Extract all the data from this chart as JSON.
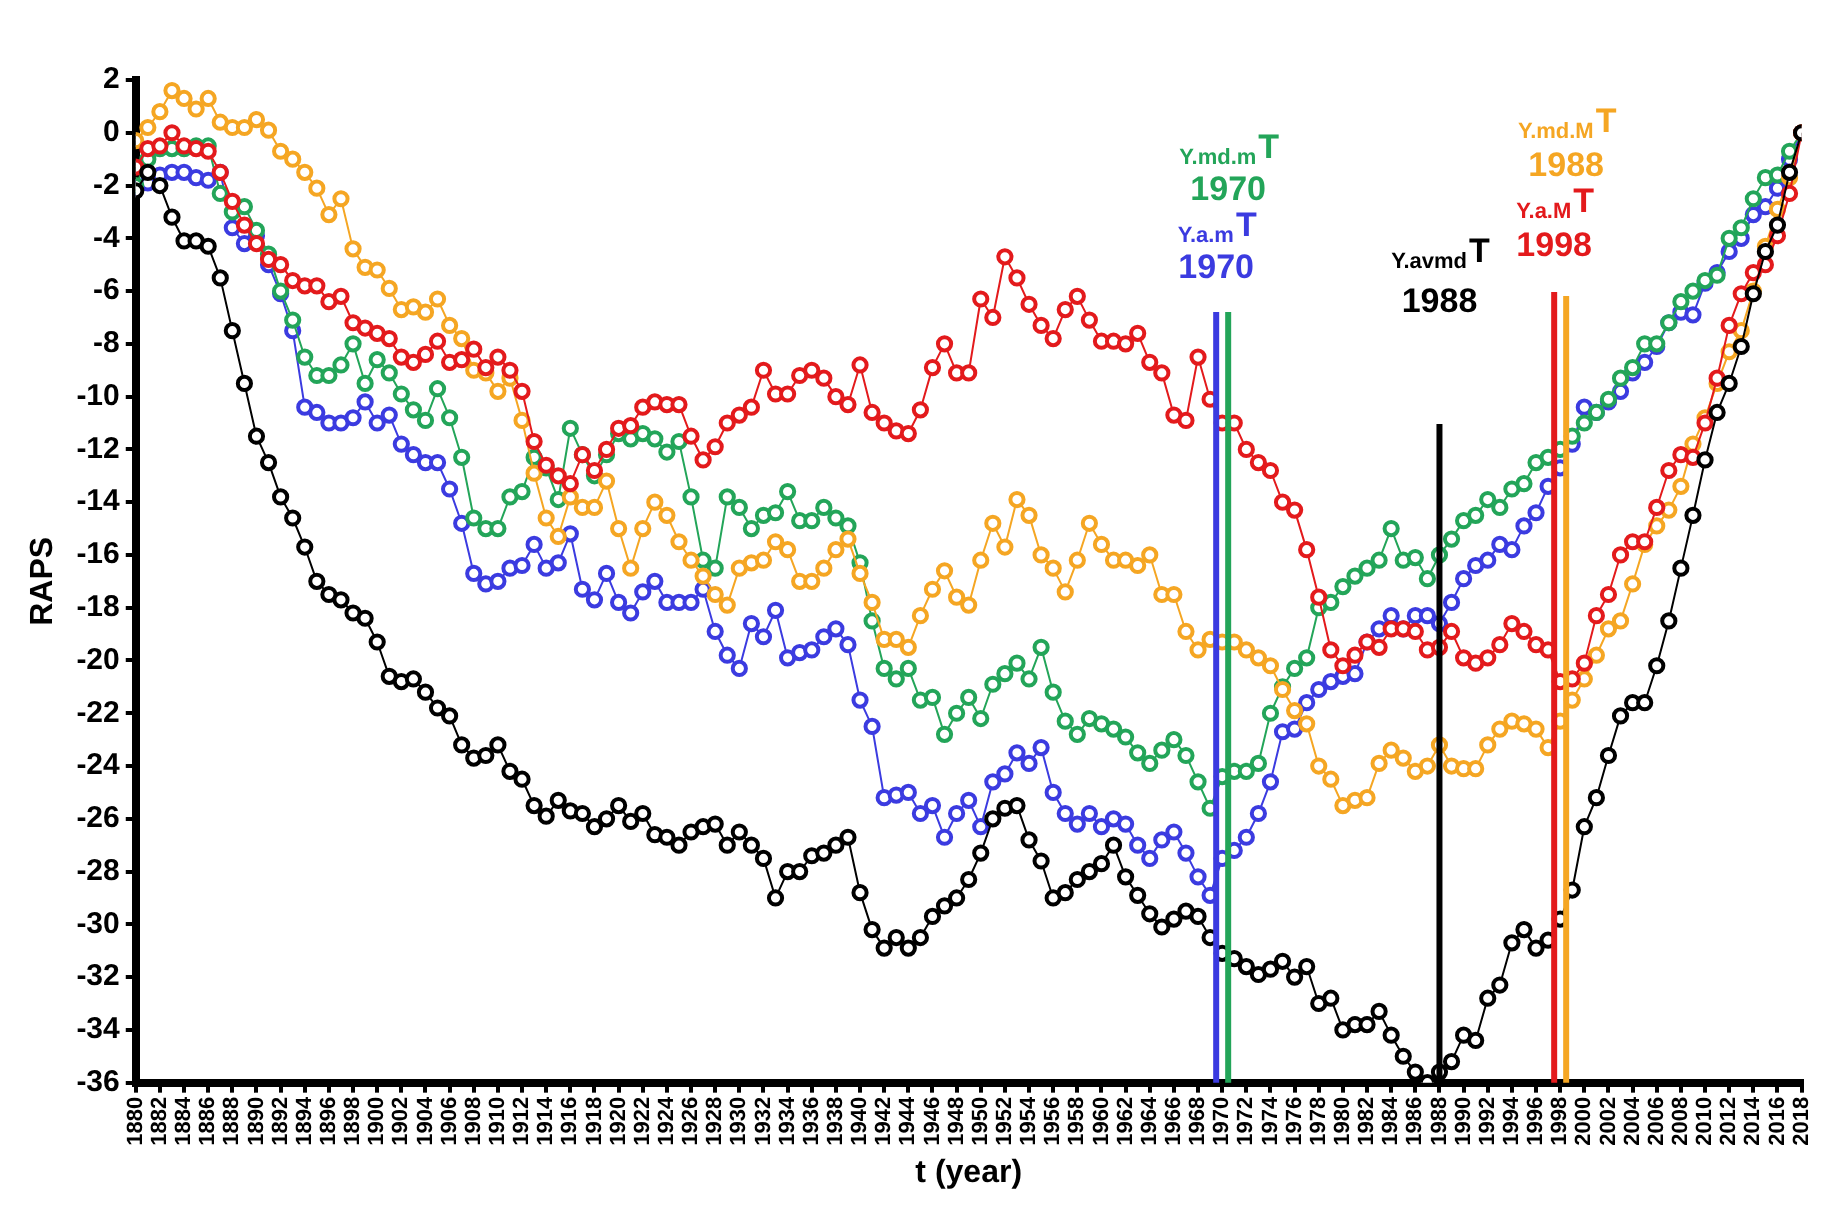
{
  "chart_data": {
    "type": "line",
    "xlabel": "t (year)",
    "ylabel": "RAPS",
    "x": [
      1880,
      1881,
      1882,
      1883,
      1884,
      1885,
      1886,
      1887,
      1888,
      1889,
      1890,
      1891,
      1892,
      1893,
      1894,
      1895,
      1896,
      1897,
      1898,
      1899,
      1900,
      1901,
      1902,
      1903,
      1904,
      1905,
      1906,
      1907,
      1908,
      1909,
      1910,
      1911,
      1912,
      1913,
      1914,
      1915,
      1916,
      1917,
      1918,
      1919,
      1920,
      1921,
      1922,
      1923,
      1924,
      1925,
      1926,
      1927,
      1928,
      1929,
      1930,
      1931,
      1932,
      1933,
      1934,
      1935,
      1936,
      1937,
      1938,
      1939,
      1940,
      1941,
      1942,
      1943,
      1944,
      1945,
      1946,
      1947,
      1948,
      1949,
      1950,
      1951,
      1952,
      1953,
      1954,
      1955,
      1956,
      1957,
      1958,
      1959,
      1960,
      1961,
      1962,
      1963,
      1964,
      1965,
      1966,
      1967,
      1968,
      1969,
      1970,
      1971,
      1972,
      1973,
      1974,
      1975,
      1976,
      1977,
      1978,
      1979,
      1980,
      1981,
      1982,
      1983,
      1984,
      1985,
      1986,
      1987,
      1988,
      1989,
      1990,
      1991,
      1992,
      1993,
      1994,
      1995,
      1996,
      1997,
      1998,
      1999,
      2000,
      2001,
      2002,
      2003,
      2004,
      2005,
      2006,
      2007,
      2008,
      2009,
      2010,
      2011,
      2012,
      2013,
      2014,
      2015,
      2016,
      2017,
      2018
    ],
    "xlim": [
      1880,
      2018
    ],
    "xticks": [
      1880,
      1882,
      1884,
      1886,
      1888,
      1890,
      1892,
      1894,
      1896,
      1898,
      1900,
      1902,
      1904,
      1906,
      1908,
      1910,
      1912,
      1914,
      1916,
      1918,
      1920,
      1922,
      1924,
      1926,
      1928,
      1930,
      1932,
      1934,
      1936,
      1938,
      1940,
      1942,
      1944,
      1946,
      1948,
      1950,
      1952,
      1954,
      1956,
      1958,
      1960,
      1962,
      1964,
      1966,
      1968,
      1970,
      1972,
      1974,
      1976,
      1978,
      1980,
      1982,
      1984,
      1986,
      1988,
      1990,
      1992,
      1994,
      1996,
      1998,
      2000,
      2002,
      2004,
      2006,
      2008,
      2010,
      2012,
      2014,
      2016,
      2018
    ],
    "ylim": [
      -36,
      2
    ],
    "yticks": [
      -36,
      -34,
      -32,
      -30,
      -28,
      -26,
      -24,
      -22,
      -20,
      -18,
      -16,
      -14,
      -12,
      -10,
      -8,
      -6,
      -4,
      -2,
      0,
      2
    ],
    "grid": false,
    "legend": false,
    "marker": "circle",
    "line_style": "solid",
    "series": [
      {
        "color": "#000000",
        "values": [
          -2.2,
          -1.5,
          -2,
          -3.2,
          -4.1,
          -4.1,
          -4.3,
          -5.5,
          -7.5,
          -9.5,
          -11.5,
          -12.5,
          -13.8,
          -14.6,
          -15.7,
          -17,
          -17.5,
          -17.7,
          -18.2,
          -18.4,
          -19.3,
          -20.6,
          -20.8,
          -20.7,
          -21.2,
          -21.8,
          -22.1,
          -23.2,
          -23.7,
          -23.6,
          -23.2,
          -24.2,
          -24.5,
          -25.5,
          -25.9,
          -25.3,
          -25.7,
          -25.8,
          -26.3,
          -26,
          -25.5,
          -26.1,
          -25.8,
          -26.6,
          -26.7,
          -27,
          -26.5,
          -26.3,
          -26.2,
          -27,
          -26.5,
          -27,
          -27.5,
          -29,
          -28,
          -28,
          -27.4,
          -27.3,
          -27,
          -26.7,
          -28.8,
          -30.2,
          -30.9,
          -30.5,
          -30.9,
          -30.5,
          -29.7,
          -29.3,
          -29,
          -28.3,
          -27.3,
          -26,
          -25.6,
          -25.5,
          -26.8,
          -27.6,
          -29,
          -28.8,
          -28.3,
          -28,
          -27.7,
          -27,
          -28.2,
          -28.9,
          -29.6,
          -30.1,
          -29.8,
          -29.5,
          -29.7,
          -30.5,
          -31.1,
          -31.3,
          -31.6,
          -31.9,
          -31.7,
          -31.4,
          -32,
          -31.6,
          -33,
          -32.8,
          -34,
          -33.8,
          -33.8,
          -33.3,
          -34.2,
          -35,
          -35.6,
          -36,
          -35.6,
          -35.2,
          -34.2,
          -34.4,
          -32.8,
          -32.3,
          -30.7,
          -30.2,
          -30.9,
          -30.6,
          -29.8,
          -28.7,
          -26.3,
          -25.2,
          -23.6,
          -22.1,
          -21.6,
          -21.6,
          -20.2,
          -18.5,
          -16.5,
          -14.5,
          -12.4,
          -10.6,
          -9.5,
          -8.1,
          -6.1,
          -4.5,
          -3.5,
          -1.5,
          0
        ]
      },
      {
        "color": "#e31a1c",
        "values": [
          -1.3,
          -0.6,
          -0.5,
          0,
          -0.5,
          -0.6,
          -0.7,
          -1.5,
          -2.6,
          -3.5,
          -4.2,
          -4.8,
          -5,
          -5.6,
          -5.8,
          -5.8,
          -6.4,
          -6.2,
          -7.2,
          -7.4,
          -7.6,
          -7.8,
          -8.5,
          -8.7,
          -8.4,
          -7.9,
          -8.7,
          -8.6,
          -8.2,
          -8.9,
          -8.5,
          -9,
          -9.8,
          -11.7,
          -12.6,
          -13,
          -13.3,
          -12.2,
          -12.8,
          -12,
          -11.2,
          -11.1,
          -10.4,
          -10.2,
          -10.3,
          -10.3,
          -11.5,
          -12.4,
          -11.9,
          -11,
          -10.7,
          -10.4,
          -9,
          -9.9,
          -9.9,
          -9.2,
          -9,
          -9.3,
          -10,
          -10.3,
          -8.8,
          -10.6,
          -11,
          -11.3,
          -11.4,
          -10.5,
          -8.9,
          -8,
          -9.1,
          -9.1,
          -6.3,
          -7,
          -4.7,
          -5.5,
          -6.5,
          -7.3,
          -7.8,
          -6.7,
          -6.2,
          -7.1,
          -7.9,
          -7.9,
          -8,
          -7.6,
          -8.7,
          -9.1,
          -10.7,
          -10.9,
          -8.5,
          -10.1,
          -11,
          -11,
          -12,
          -12.5,
          -12.8,
          -14,
          -14.3,
          -15.8,
          -17.6,
          -19.6,
          -20.2,
          -19.8,
          -19.3,
          -19.5,
          -18.8,
          -18.8,
          -18.9,
          -19.6,
          -19.5,
          -18.9,
          -19.9,
          -20.1,
          -19.9,
          -19.4,
          -18.6,
          -18.9,
          -19.4,
          -19.6,
          -20.8,
          -20.7,
          -20.1,
          -18.3,
          -17.5,
          -16,
          -15.5,
          -15.5,
          -14.2,
          -12.8,
          -12.2,
          -12.3,
          -11,
          -9.3,
          -7.3,
          -6.1,
          -5.3,
          -5,
          -3.9,
          -2.3,
          0
        ]
      },
      {
        "color": "#f5a623",
        "values": [
          -0.3,
          0.2,
          0.8,
          1.6,
          1.3,
          0.9,
          1.3,
          0.4,
          0.2,
          0.2,
          0.5,
          0.1,
          -0.7,
          -1,
          -1.5,
          -2.1,
          -3.1,
          -2.5,
          -4.4,
          -5.1,
          -5.2,
          -5.9,
          -6.7,
          -6.6,
          -6.8,
          -6.3,
          -7.3,
          -7.8,
          -9,
          -9.1,
          -9.8,
          -9.3,
          -10.9,
          -12.9,
          -14.6,
          -15.3,
          -13.8,
          -14.2,
          -14.2,
          -13.2,
          -15,
          -16.5,
          -15,
          -14,
          -14.5,
          -15.5,
          -16.2,
          -16.8,
          -17.5,
          -17.9,
          -16.5,
          -16.3,
          -16.2,
          -15.5,
          -15.8,
          -17,
          -17,
          -16.5,
          -15.8,
          -15.4,
          -16.7,
          -17.8,
          -19.2,
          -19.2,
          -19.5,
          -18.3,
          -17.3,
          -16.6,
          -17.6,
          -17.9,
          -16.2,
          -14.8,
          -15.7,
          -13.9,
          -14.5,
          -16,
          -16.5,
          -17.4,
          -16.2,
          -14.8,
          -15.6,
          -16.2,
          -16.2,
          -16.4,
          -16,
          -17.5,
          -17.5,
          -18.9,
          -19.6,
          -19.2,
          -19.3,
          -19.3,
          -19.6,
          -19.9,
          -20.2,
          -21.1,
          -21.9,
          -22.4,
          -24,
          -24.5,
          -25.5,
          -25.3,
          -25.2,
          -23.9,
          -23.4,
          -23.7,
          -24.2,
          -24,
          -23.2,
          -24,
          -24.1,
          -24.1,
          -23.2,
          -22.6,
          -22.3,
          -22.4,
          -22.6,
          -23.3,
          -22.3,
          -21.5,
          -20.7,
          -19.8,
          -18.8,
          -18.5,
          -17.1,
          -15.6,
          -14.9,
          -14.3,
          -13.4,
          -11.8,
          -10.8,
          -9.5,
          -8.3,
          -7.5,
          -6,
          -4.3,
          -2.9,
          -1.7,
          0
        ]
      },
      {
        "color": "#23a559",
        "values": [
          -2,
          -1,
          -0.6,
          -0.6,
          -0.6,
          -0.5,
          -0.5,
          -2.3,
          -3,
          -2.8,
          -3.7,
          -4.6,
          -6,
          -7.1,
          -8.5,
          -9.2,
          -9.2,
          -8.8,
          -8,
          -9.5,
          -8.6,
          -9.1,
          -9.9,
          -10.5,
          -10.9,
          -9.7,
          -10.8,
          -12.3,
          -14.6,
          -15,
          -15,
          -13.8,
          -13.6,
          -12.3,
          -12.7,
          -13.9,
          -11.2,
          -12.2,
          -13,
          -12.2,
          -11.4,
          -11.6,
          -11.4,
          -11.6,
          -12.1,
          -11.7,
          -13.8,
          -16.2,
          -16.5,
          -13.8,
          -14.2,
          -15,
          -14.5,
          -14.4,
          -13.6,
          -14.7,
          -14.7,
          -14.2,
          -14.6,
          -14.9,
          -16.3,
          -18.5,
          -20.3,
          -20.7,
          -20.3,
          -21.5,
          -21.4,
          -22.8,
          -22,
          -21.4,
          -22.2,
          -20.9,
          -20.5,
          -20.1,
          -20.7,
          -19.5,
          -21.2,
          -22.3,
          -22.8,
          -22.2,
          -22.4,
          -22.6,
          -22.9,
          -23.5,
          -23.9,
          -23.4,
          -23,
          -23.6,
          -24.6,
          -25.6,
          -24.4,
          -24.2,
          -24.2,
          -23.9,
          -22,
          -21,
          -20.3,
          -19.9,
          -18,
          -17.8,
          -17.2,
          -16.8,
          -16.5,
          -16.2,
          -15,
          -16.2,
          -16.1,
          -16.9,
          -16,
          -15.4,
          -14.7,
          -14.5,
          -13.9,
          -14.2,
          -13.5,
          -13.3,
          -12.5,
          -12.3,
          -12,
          -11.5,
          -11,
          -10.6,
          -10.1,
          -9.3,
          -8.9,
          -8,
          -8,
          -7.2,
          -6.4,
          -6,
          -5.6,
          -5.4,
          -4,
          -3.6,
          -2.5,
          -1.7,
          -1.6,
          -0.7,
          0
        ]
      },
      {
        "color": "#3b3be0",
        "values": [
          -2.1,
          -1.9,
          -1.6,
          -1.5,
          -1.5,
          -1.7,
          -1.8,
          -1.5,
          -3.6,
          -4.2,
          -3.9,
          -5,
          -6.1,
          -7.5,
          -10.4,
          -10.6,
          -11,
          -11,
          -10.8,
          -10.2,
          -11,
          -10.7,
          -11.8,
          -12.2,
          -12.5,
          -12.5,
          -13.5,
          -14.8,
          -16.7,
          -17.1,
          -17,
          -16.5,
          -16.4,
          -15.6,
          -16.5,
          -16.3,
          -15.2,
          -17.3,
          -17.7,
          -16.7,
          -17.8,
          -18.2,
          -17.4,
          -17,
          -17.8,
          -17.8,
          -17.8,
          -17.3,
          -18.9,
          -19.8,
          -20.3,
          -18.6,
          -19.1,
          -18.1,
          -19.9,
          -19.7,
          -19.6,
          -19.1,
          -18.8,
          -19.4,
          -21.5,
          -22.5,
          -25.2,
          -25.1,
          -25,
          -25.8,
          -25.5,
          -26.7,
          -25.8,
          -25.3,
          -26.3,
          -24.6,
          -24.3,
          -23.5,
          -23.9,
          -23.3,
          -25,
          -25.8,
          -26.2,
          -25.8,
          -26.3,
          -26,
          -26.2,
          -27,
          -27.5,
          -26.8,
          -26.5,
          -27.3,
          -28.2,
          -28.9,
          -27.5,
          -27.2,
          -26.7,
          -25.8,
          -24.6,
          -22.7,
          -22.6,
          -21.6,
          -21.1,
          -20.8,
          -20.6,
          -20.5,
          -19.3,
          -18.8,
          -18.3,
          -18.8,
          -18.3,
          -18.3,
          -18.6,
          -17.8,
          -16.9,
          -16.4,
          -16.2,
          -15.6,
          -15.8,
          -14.9,
          -14.4,
          -13.4,
          -12.7,
          -11.8,
          -10.4,
          -10.6,
          -10.2,
          -9.8,
          -9.1,
          -8.7,
          -8.1,
          -7.2,
          -6.8,
          -6.9,
          -5.7,
          -5.3,
          -4.5,
          -4,
          -3.1,
          -2.8,
          -2.1,
          -1,
          0
        ]
      }
    ],
    "ref_lines": [
      {
        "axis": "x",
        "value": 1970,
        "label": "Y.a.mT 1970",
        "color": "#3b3be0"
      },
      {
        "axis": "x",
        "value": 1970,
        "label": "Y.md.mT 1970",
        "color": "#23a559"
      },
      {
        "axis": "x",
        "value": 1988,
        "label": "Y.avmdT 1988",
        "color": "#000000"
      },
      {
        "axis": "x",
        "value": 1998,
        "label": "Y.a.MT 1998",
        "color": "#e31a1c"
      },
      {
        "axis": "x",
        "value": 1998,
        "label": "Y.md.MT 1988",
        "color": "#f5a623"
      }
    ]
  }
}
